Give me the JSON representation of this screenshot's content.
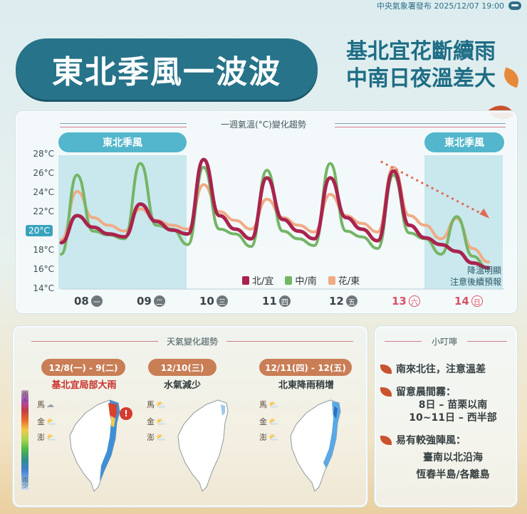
{
  "header": {
    "publisher": "中央氣象署發布 2025/12/07 19:00",
    "headline": "東北季風一波波",
    "subhead_line1": "基北宜花斷續雨",
    "subhead_line2": "中南日夜溫差大"
  },
  "chart_panel": {
    "title": "一週氣溫(°C)變化趨勢",
    "monsoon_left": "東北季風",
    "monsoon_right": "東北季風",
    "highlight_tick": "20°C",
    "note_line1": "降溫明顯",
    "note_line2": "注意後續預報",
    "day_labels": [
      {
        "date": "08",
        "dow": "一",
        "weekend": false
      },
      {
        "date": "09",
        "dow": "二",
        "weekend": false
      },
      {
        "date": "10",
        "dow": "三",
        "weekend": false
      },
      {
        "date": "11",
        "dow": "四",
        "weekend": false
      },
      {
        "date": "12",
        "dow": "五",
        "weekend": false
      },
      {
        "date": "13",
        "dow": "六",
        "weekend": true
      },
      {
        "date": "14",
        "dow": "日",
        "weekend": true
      }
    ]
  },
  "chart_data": {
    "type": "line",
    "title": "一週氣溫(°C)變化趨勢",
    "xlabel": "",
    "ylabel": "",
    "y_ticks": [
      "28°C",
      "26°C",
      "24°C",
      "22°C",
      "20°C",
      "18°C",
      "16°C",
      "14°C"
    ],
    "ylim": [
      14,
      28
    ],
    "x": [
      0,
      0.25,
      0.5,
      0.75,
      1,
      1.25,
      1.5,
      1.75,
      2,
      2.25,
      2.5,
      2.75,
      3,
      3.25,
      3.5,
      3.75,
      4,
      4.25,
      4.5,
      4.75,
      5,
      5.25,
      5.5,
      5.75,
      6,
      6.25,
      6.5,
      6.75
    ],
    "grid": false,
    "legend_position": "bottom-right",
    "series": [
      {
        "name": "北/宜",
        "color": "#a8244e",
        "values": [
          18.8,
          21.6,
          20.4,
          19.7,
          19.4,
          22.8,
          21.0,
          20.1,
          19.7,
          27.4,
          21.6,
          20.2,
          19.2,
          25.5,
          21.2,
          20.0,
          19.2,
          25.5,
          21.4,
          20.2,
          19.0,
          26.2,
          20.6,
          19.3,
          18.6,
          17.9,
          16.7,
          16.2
        ]
      },
      {
        "name": "中/南",
        "color": "#74b566",
        "values": [
          17.6,
          25.8,
          20.0,
          19.6,
          19.2,
          27.0,
          20.6,
          20.2,
          18.6,
          26.6,
          20.2,
          19.7,
          18.4,
          26.3,
          20.0,
          19.2,
          18.5,
          27.0,
          20.0,
          19.4,
          18.2,
          25.8,
          19.8,
          19.2,
          17.6,
          21.5,
          17.4,
          16.1
        ]
      },
      {
        "name": "花/東",
        "color": "#f0ab86",
        "values": [
          19.1,
          24.1,
          21.4,
          20.6,
          20.0,
          22.3,
          21.1,
          20.6,
          20.2,
          24.8,
          22.0,
          21.1,
          20.2,
          23.3,
          21.4,
          20.6,
          19.9,
          23.8,
          21.6,
          20.8,
          19.9,
          26.6,
          21.6,
          20.6,
          19.2,
          21.3,
          18.2,
          16.8
        ]
      }
    ]
  },
  "weather_panel": {
    "title": "天氣變化趨勢",
    "cards": [
      {
        "date": "12/8(一) - 9(二)",
        "caption": "基北宜局部大雨",
        "caption_alert": true
      },
      {
        "date": "12/10(三)",
        "caption": "水氣減少",
        "caption_alert": false
      },
      {
        "date": "12/11(四) - 12(五)",
        "caption": "北東降雨稍增",
        "caption_alert": false
      }
    ],
    "islands": [
      "馬",
      "金",
      "澎"
    ],
    "colorbar_top": "雨多",
    "colorbar_bottom": "雨少"
  },
  "tips_panel": {
    "title": "小叮嚀",
    "tip1": "南來北往，注意溫差",
    "tip2": "留意晨間霧：",
    "tip2_line1": "8日 – 苗栗以南",
    "tip2_line2": "10~11日 – 西半部",
    "tip3": "易有較強陣風：",
    "tip3_line1": "臺南以北沿海",
    "tip3_line2": "恆春半島/各離島"
  },
  "colors": {
    "brand": "#27738a",
    "monsoon": "#53b6cc",
    "date_pill": "#c97e56",
    "alert": "#d6392f"
  }
}
